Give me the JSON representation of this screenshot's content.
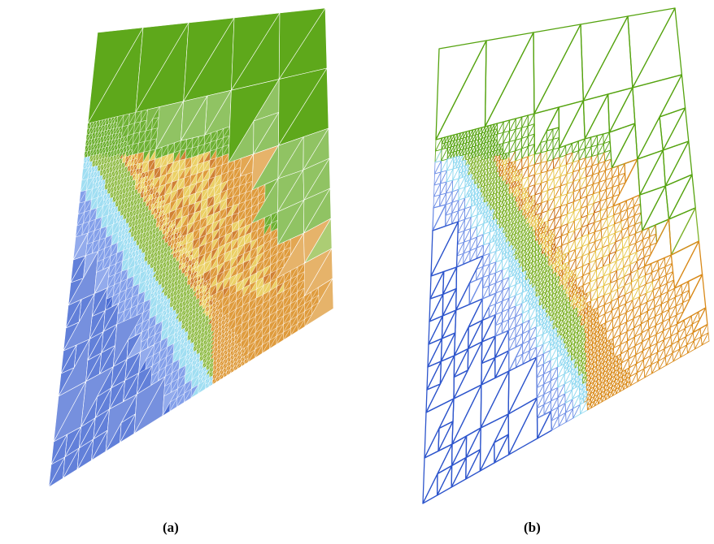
{
  "figure": {
    "panels": [
      {
        "id": "a",
        "caption": "(a)",
        "style": "filled translucent adaptive triangular mesh"
      },
      {
        "id": "b",
        "caption": "(b)",
        "style": "wireframe adaptive triangular mesh"
      }
    ]
  },
  "colors": {
    "blue": "#2d55cc",
    "blue_light": "#6f8fe6",
    "cyan": "#8fd8f0",
    "green": "#55a30f",
    "green_light": "#7fb22a",
    "yellow": "#e8c84a",
    "orange": "#d98a1a",
    "orange_dark": "#c86a10",
    "edge_white": "#ffffff",
    "background": "#ffffff"
  }
}
